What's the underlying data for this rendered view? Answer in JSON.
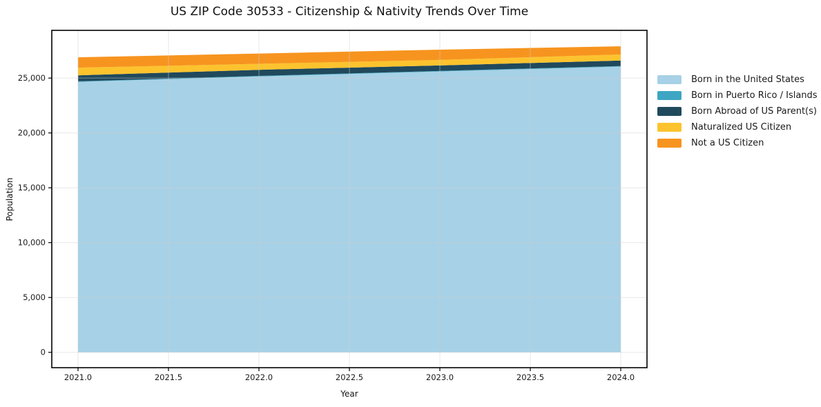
{
  "figure": {
    "background": "#ffffff",
    "spine_color": "#000000",
    "grid_color": "#cfcfcf",
    "tick_label_color": "#1a1a1a"
  },
  "chart_data": {
    "type": "area",
    "stacked": true,
    "title": "US ZIP Code 30533 - Citizenship & Nativity Trends Over Time",
    "xlabel": "Year",
    "ylabel": "Population",
    "x": [
      2021,
      2022,
      2023,
      2024
    ],
    "series": [
      {
        "name": "Born in the United States",
        "color": "#a7d1e6",
        "values": [
          24650,
          25150,
          25600,
          26050
        ]
      },
      {
        "name": "Born in Puerto Rico / Islands",
        "color": "#3ea6c2",
        "values": [
          50,
          50,
          50,
          50
        ]
      },
      {
        "name": "Born Abroad of US Parent(s)",
        "color": "#20495c",
        "values": [
          550,
          550,
          500,
          500
        ]
      },
      {
        "name": "Naturalized US Citizen",
        "color": "#fcc32e",
        "values": [
          700,
          550,
          500,
          550
        ]
      },
      {
        "name": "Not a US Citizen",
        "color": "#f7941f",
        "values": [
          940,
          940,
          940,
          750
        ]
      }
    ],
    "xticks": [
      2021.0,
      2021.5,
      2022.0,
      2022.5,
      2023.0,
      2023.5,
      2024.0
    ],
    "xtick_labels": [
      "2021.0",
      "2021.5",
      "2022.0",
      "2022.5",
      "2023.0",
      "2023.5",
      "2024.0"
    ],
    "yticks": [
      0,
      5000,
      10000,
      15000,
      20000,
      25000
    ],
    "ytick_labels": [
      "0",
      "5,000",
      "10,000",
      "15,000",
      "20,000",
      "25,000"
    ],
    "xlim": [
      2020.855,
      2024.145
    ],
    "ylim": [
      -1400,
      29350
    ],
    "grid": true,
    "legend_position": "right of axes"
  }
}
